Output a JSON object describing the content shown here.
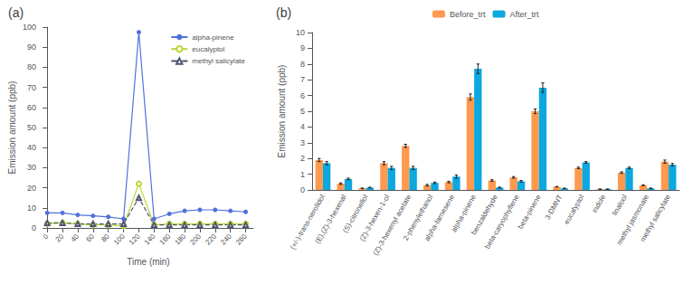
{
  "chart_data": [
    {
      "type": "line",
      "title": "(a)",
      "xlabel": "Time (min)",
      "ylabel": "Emission amount (ppb)",
      "x": [
        0,
        20,
        40,
        60,
        80,
        100,
        120,
        140,
        160,
        180,
        200,
        220,
        240,
        260
      ],
      "series": [
        {
          "name": "alpha-pinene",
          "values": [
            7.5,
            7.5,
            6.5,
            6.0,
            5.5,
            4.5,
            97.5,
            4.5,
            7.0,
            8.5,
            9.0,
            9.0,
            8.5,
            8.0
          ],
          "marker": "circle",
          "line_style": "solid"
        },
        {
          "name": "eucalyptol",
          "values": [
            2.0,
            2.5,
            2.0,
            1.5,
            1.5,
            1.0,
            22.0,
            1.5,
            2.0,
            2.0,
            2.0,
            2.0,
            2.0,
            2.0
          ],
          "marker": "hollow_circle",
          "line_style": "solid"
        },
        {
          "name": "methyl salicylate",
          "values": [
            2.5,
            2.5,
            2.0,
            2.0,
            2.0,
            2.0,
            15.0,
            1.5,
            1.5,
            1.5,
            1.5,
            1.5,
            1.5,
            1.5
          ],
          "marker": "hollow_triangle",
          "line_style": "dashed"
        }
      ],
      "xlim": [
        -5,
        270
      ],
      "xticks": [
        0,
        20,
        40,
        60,
        80,
        100,
        120,
        140,
        160,
        180,
        200,
        220,
        240,
        260
      ],
      "ylim": [
        0,
        100
      ],
      "yticks": [
        0,
        10,
        20,
        30,
        40,
        50,
        60,
        70,
        80,
        90,
        100
      ],
      "legend": "upper right",
      "grid": false
    },
    {
      "type": "bar",
      "title": "(b)",
      "ylabel": "Emission amount (ppb)",
      "categories": [
        "(+/-)-trans-nerolidol",
        "(E),(Z)-3-hexenal",
        "(S)-citronellol",
        "(Z)-3-hexen-1-ol",
        "(Z)-3-hexenyl acetate",
        "2-phenylethanol",
        "alpha-farnesene",
        "alpha-pinene",
        "benzaldehyde",
        "beta-caryophyllene",
        "beta-pinene",
        "3-DMNT",
        "eucalyptol",
        "indole",
        "linalool",
        "methyl jasmonate",
        "methyl salicylate"
      ],
      "series": [
        {
          "name": "Before_trt",
          "values": [
            1.9,
            0.4,
            0.1,
            1.7,
            2.8,
            0.3,
            0.5,
            5.9,
            0.6,
            0.8,
            5.0,
            0.2,
            1.4,
            0.05,
            1.1,
            0.3,
            1.8
          ],
          "errors": [
            0.1,
            0.05,
            0.02,
            0.1,
            0.1,
            0.05,
            0.05,
            0.2,
            0.05,
            0.05,
            0.15,
            0.02,
            0.05,
            0.01,
            0.05,
            0.03,
            0.1
          ]
        },
        {
          "name": "After_trt",
          "values": [
            1.7,
            0.7,
            0.15,
            1.4,
            1.4,
            0.45,
            0.85,
            7.7,
            0.15,
            0.55,
            6.5,
            0.1,
            1.75,
            0.05,
            1.4,
            0.1,
            1.6
          ],
          "errors": [
            0.1,
            0.05,
            0.02,
            0.1,
            0.1,
            0.05,
            0.1,
            0.3,
            0.03,
            0.05,
            0.3,
            0.02,
            0.05,
            0.01,
            0.05,
            0.02,
            0.08
          ]
        }
      ],
      "ylim": [
        0,
        10
      ],
      "yticks": [
        0,
        1,
        2,
        3,
        4,
        5,
        6,
        7,
        8,
        9,
        10
      ],
      "legend": "upper center",
      "grid": false
    }
  ]
}
